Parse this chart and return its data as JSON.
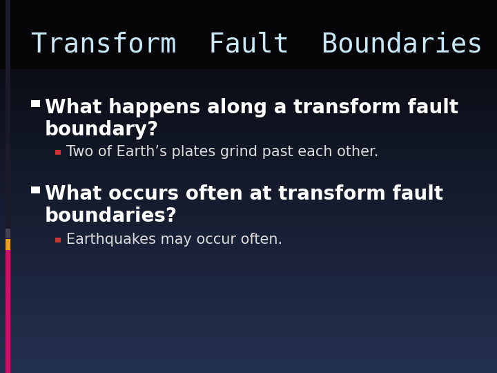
{
  "title": "Transform  Fault  Boundaries",
  "title_color": "#c8e8f8",
  "title_fontsize": 28,
  "title_font": "monospace",
  "bg_top_color": "#050508",
  "bg_bottom_color": "#243050",
  "bullet1_text": "What happens along a transform fault\nboundary?",
  "sub_bullet1_text": "Two of Earth’s plates grind past each other.",
  "bullet2_text": "What occurs often at transform fault\nboundaries?",
  "sub_bullet2_text": "Earthquakes may occur often.",
  "bullet_fontsize": 20,
  "sub_bullet_fontsize": 15,
  "sub_bullet_color": "#dddddd",
  "left_title_bar_color": "#1a1a2a",
  "left_seg1_color": "#444450",
  "left_seg2_color": "#e8a020",
  "left_seg3_color": "#cc1166",
  "sub_bullet_square_color": "#cc3333"
}
